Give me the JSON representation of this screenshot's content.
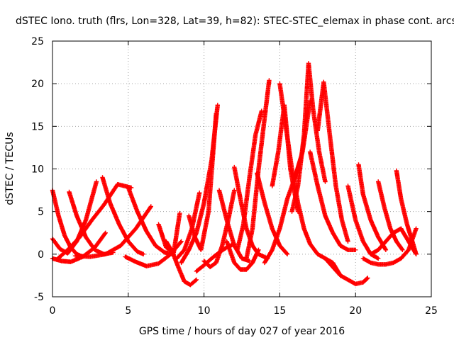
{
  "chart_data": {
    "type": "scatter",
    "title": "dSTEC Iono. truth (flrs, Lon=328, Lat=39, h=82): STEC-STEC_elemax in phase cont. arcs",
    "xlabel": "GPS time / hours of day 027 of year 2016",
    "ylabel": "dSTEC  / TECUs",
    "xlim": [
      0,
      25
    ],
    "ylim": [
      -5,
      25
    ],
    "xticks": [
      0,
      5,
      10,
      15,
      20,
      25
    ],
    "yticks": [
      -5,
      0,
      5,
      10,
      15,
      20,
      25
    ],
    "grid": true,
    "marker": "+",
    "color": "#ff0000",
    "series": [
      {
        "x": [
          0.0,
          0.4,
          0.8,
          1.2,
          1.6,
          2.0
        ],
        "y": [
          7.5,
          4.5,
          2.2,
          0.8,
          0.0,
          -0.3
        ]
      },
      {
        "x": [
          0.0,
          0.6,
          1.2,
          2.0,
          2.8,
          3.5
        ],
        "y": [
          -0.5,
          -0.8,
          -0.9,
          -0.3,
          0.8,
          2.5
        ]
      },
      {
        "x": [
          0.0,
          0.5,
          1.0,
          1.6,
          2.2,
          2.9
        ],
        "y": [
          1.8,
          0.6,
          0.1,
          1.5,
          4.0,
          8.5
        ]
      },
      {
        "x": [
          1.1,
          1.6,
          2.2,
          2.8,
          3.4,
          4.0
        ],
        "y": [
          7.3,
          4.5,
          2.0,
          0.5,
          0.0,
          0.2
        ]
      },
      {
        "x": [
          0.3,
          1.0,
          1.8,
          2.6,
          3.4,
          4.3,
          5.2
        ],
        "y": [
          -0.6,
          0.5,
          2.0,
          4.0,
          5.8,
          8.2,
          7.8
        ]
      },
      {
        "x": [
          3.3,
          3.8,
          4.4,
          5.0,
          5.6,
          6.0
        ],
        "y": [
          9.0,
          6.0,
          3.5,
          1.5,
          0.3,
          0.0
        ]
      },
      {
        "x": [
          1.5,
          2.5,
          3.5,
          4.5,
          5.5,
          6.5
        ],
        "y": [
          -0.2,
          -0.3,
          0.0,
          1.0,
          3.0,
          5.6
        ]
      },
      {
        "x": [
          5.0,
          5.6,
          6.2,
          6.8,
          7.4,
          8.0
        ],
        "y": [
          7.8,
          5.0,
          2.7,
          1.0,
          0.2,
          0.0
        ]
      },
      {
        "x": [
          4.8,
          5.5,
          6.2,
          7.0,
          7.8,
          8.5
        ],
        "y": [
          -0.3,
          -0.9,
          -1.4,
          -1.1,
          0.0,
          1.5
        ]
      },
      {
        "x": [
          7.5,
          7.9,
          8.3,
          8.7,
          9.1,
          9.5
        ],
        "y": [
          1.5,
          0.3,
          -1.5,
          -3.2,
          -3.6,
          -3.0
        ]
      },
      {
        "x": [
          7.0,
          7.5,
          8.0,
          8.4
        ],
        "y": [
          3.5,
          0.8,
          0.2,
          4.8
        ]
      },
      {
        "x": [
          8.2,
          8.7,
          9.2,
          9.7
        ],
        "y": [
          -0.5,
          0.5,
          3.0,
          7.2
        ]
      },
      {
        "x": [
          9.5,
          10.0,
          10.5,
          11.0,
          11.5,
          12.0
        ],
        "y": [
          -2.0,
          -1.3,
          -0.5,
          0.2,
          0.8,
          1.2
        ]
      },
      {
        "x": [
          8.5,
          9.0,
          9.5,
          10.0,
          10.5,
          10.9
        ],
        "y": [
          -1.0,
          0.5,
          2.5,
          6.0,
          11.0,
          17.5
        ]
      },
      {
        "x": [
          9.0,
          9.4,
          9.8,
          10.3,
          10.8
        ],
        "y": [
          4.5,
          2.0,
          0.5,
          5.0,
          16.5
        ]
      },
      {
        "x": [
          10.0,
          10.4,
          10.8,
          11.2,
          11.6,
          12.0
        ],
        "y": [
          -0.8,
          -1.5,
          -1.0,
          1.0,
          4.0,
          7.5
        ]
      },
      {
        "x": [
          11.0,
          11.5,
          12.0,
          12.5,
          13.0
        ],
        "y": [
          7.5,
          4.0,
          1.0,
          -0.5,
          -0.8
        ]
      },
      {
        "x": [
          11.5,
          12.0,
          12.4,
          12.8,
          13.2,
          13.6
        ],
        "y": [
          1.5,
          -1.0,
          -1.8,
          -1.8,
          -1.0,
          0.5
        ]
      },
      {
        "x": [
          12.0,
          12.4,
          12.8,
          13.2,
          13.6,
          14.2
        ],
        "y": [
          10.2,
          6.5,
          3.0,
          1.0,
          0.0,
          -0.5
        ]
      },
      {
        "x": [
          12.2,
          12.6,
          13.0,
          13.4,
          13.8
        ],
        "y": [
          0.5,
          3.5,
          9.0,
          14.0,
          16.8
        ]
      },
      {
        "x": [
          12.8,
          13.2,
          13.6,
          14.0,
          14.3
        ],
        "y": [
          -0.5,
          3.0,
          10.0,
          16.0,
          20.4
        ]
      },
      {
        "x": [
          13.5,
          14.0,
          14.5,
          15.0,
          15.5
        ],
        "y": [
          9.5,
          6.0,
          3.0,
          1.0,
          0.0
        ]
      },
      {
        "x": [
          14.5,
          14.9,
          15.3,
          15.7,
          16.2
        ],
        "y": [
          8.0,
          12.0,
          17.5,
          10.0,
          5.0
        ]
      },
      {
        "x": [
          15.0,
          15.4,
          15.8,
          16.2,
          16.6,
          17.0
        ],
        "y": [
          20.0,
          15.0,
          10.0,
          6.0,
          3.0,
          1.2
        ]
      },
      {
        "x": [
          14.0,
          14.5,
          15.0,
          15.5,
          16.0,
          16.5,
          17.0
        ],
        "y": [
          -1.0,
          0.5,
          3.0,
          6.5,
          9.0,
          12.0,
          18.0
        ]
      },
      {
        "x": [
          15.8,
          16.2,
          16.6,
          16.9,
          17.2,
          17.6,
          18.0
        ],
        "y": [
          5.0,
          8.0,
          14.0,
          22.4,
          17.0,
          12.0,
          8.5
        ]
      },
      {
        "x": [
          17.5,
          17.9,
          18.3,
          18.7,
          19.1,
          19.5
        ],
        "y": [
          14.5,
          20.2,
          14.0,
          8.0,
          4.0,
          1.5
        ]
      },
      {
        "x": [
          17.0,
          17.5,
          18.0,
          18.5,
          19.0
        ],
        "y": [
          1.2,
          0.0,
          -0.5,
          -1.0,
          -2.5
        ]
      },
      {
        "x": [
          17.0,
          17.5,
          18.0,
          18.5,
          19.0,
          19.5,
          20.0
        ],
        "y": [
          12.0,
          8.0,
          4.5,
          2.5,
          1.0,
          0.5,
          0.5
        ]
      },
      {
        "x": [
          18.0,
          18.5,
          19.0,
          19.5,
          20.0,
          20.5,
          20.8
        ],
        "y": [
          -0.5,
          -1.5,
          -2.5,
          -3.0,
          -3.5,
          -3.3,
          -2.8
        ]
      },
      {
        "x": [
          19.5,
          20.0,
          20.5,
          21.0,
          21.5
        ],
        "y": [
          8.0,
          4.0,
          1.5,
          0.0,
          -0.5
        ]
      },
      {
        "x": [
          20.2,
          20.5,
          21.0,
          21.5,
          22.0
        ],
        "y": [
          10.5,
          7.0,
          4.0,
          2.0,
          0.5
        ]
      },
      {
        "x": [
          21.5,
          21.9,
          22.3,
          22.7,
          23.1
        ],
        "y": [
          8.5,
          5.5,
          3.0,
          1.5,
          0.5
        ]
      },
      {
        "x": [
          22.7,
          23.0,
          23.4,
          23.8,
          24.0
        ],
        "y": [
          9.8,
          6.5,
          3.5,
          1.2,
          0.0
        ]
      },
      {
        "x": [
          20.5,
          21.0,
          21.5,
          22.0,
          22.5,
          23.0,
          23.5,
          24.0
        ],
        "y": [
          -0.5,
          -1.0,
          -1.2,
          -1.2,
          -1.0,
          -0.5,
          0.5,
          3.0
        ]
      },
      {
        "x": [
          21.0,
          21.5,
          22.0,
          22.5,
          23.0,
          23.5,
          24.0
        ],
        "y": [
          0.0,
          0.5,
          1.5,
          2.5,
          3.0,
          1.5,
          0.0
        ]
      }
    ]
  }
}
